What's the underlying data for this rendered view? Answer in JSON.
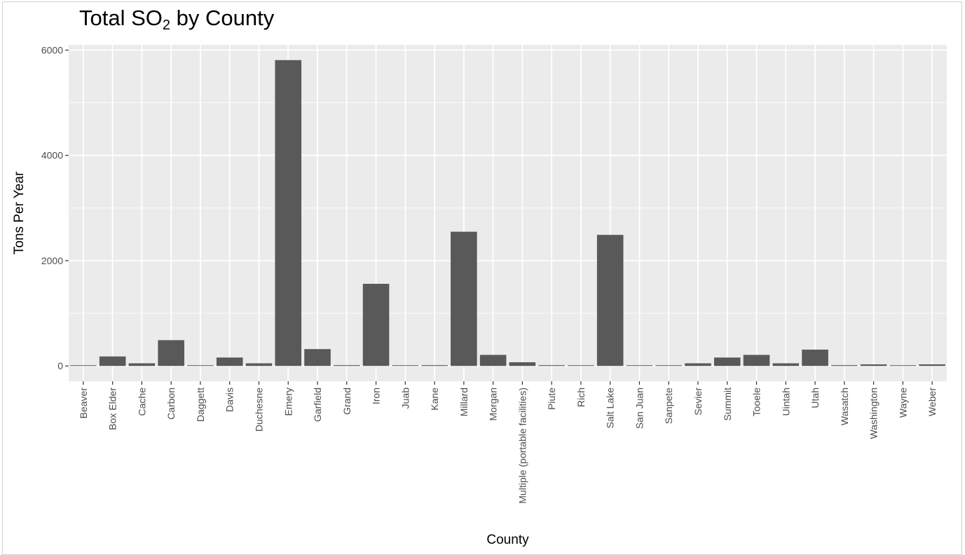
{
  "chart_data": {
    "type": "bar",
    "title_main": "Total SO",
    "title_sub": "2",
    "title_end": " by County",
    "xlabel": "County",
    "ylabel": "Tons Per Year",
    "ylim": [
      -290,
      6100
    ],
    "yticks": [
      0,
      2000,
      4000,
      6000
    ],
    "grid": true,
    "colors": {
      "bar": "#595959",
      "panel": "#ebebeb",
      "grid": "#ffffff"
    },
    "categories": [
      "Beaver",
      "Box Elder",
      "Cache",
      "Carbon",
      "Daggett",
      "Davis",
      "Duchesne",
      "Emery",
      "Garfield",
      "Grand",
      "Iron",
      "Juab",
      "Kane",
      "Millard",
      "Morgan",
      "Multiple (portable facilities)",
      "Piute",
      "Rich",
      "Salt Lake",
      "San Juan",
      "Sanpete",
      "Sevier",
      "Summit",
      "Tooele",
      "Uintah",
      "Utah",
      "Wasatch",
      "Washington",
      "Wayne",
      "Weber"
    ],
    "values": [
      12,
      180,
      50,
      490,
      2,
      160,
      50,
      5810,
      320,
      15,
      1560,
      12,
      15,
      2550,
      210,
      70,
      15,
      3,
      2490,
      12,
      12,
      50,
      160,
      210,
      50,
      310,
      15,
      30,
      2,
      30
    ]
  }
}
